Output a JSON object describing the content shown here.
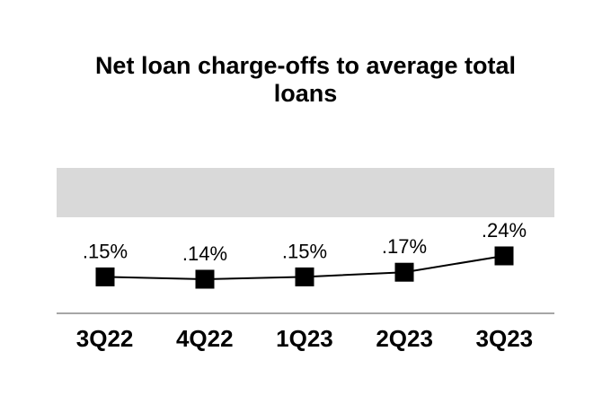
{
  "chart_data": {
    "type": "line",
    "title": "Net loan charge-offs to average total loans",
    "categories": [
      "3Q22",
      "4Q22",
      "1Q23",
      "2Q23",
      "3Q23"
    ],
    "values": [
      0.15,
      0.14,
      0.15,
      0.17,
      0.24
    ],
    "labels": [
      ".15%",
      ".14%",
      ".15%",
      ".17%",
      ".24%"
    ],
    "unit": "%",
    "marker": "square",
    "line_color": "#000000",
    "marker_color": "#000000",
    "label_color": "#000000",
    "y_axis_visible": false,
    "ylim": [
      0.1,
      0.3
    ],
    "grid": false,
    "legend": false
  },
  "colors": {
    "background": "#ffffff",
    "band": "#d9d9d9",
    "axis_line": "#a6a6a6",
    "text": "#000000"
  }
}
